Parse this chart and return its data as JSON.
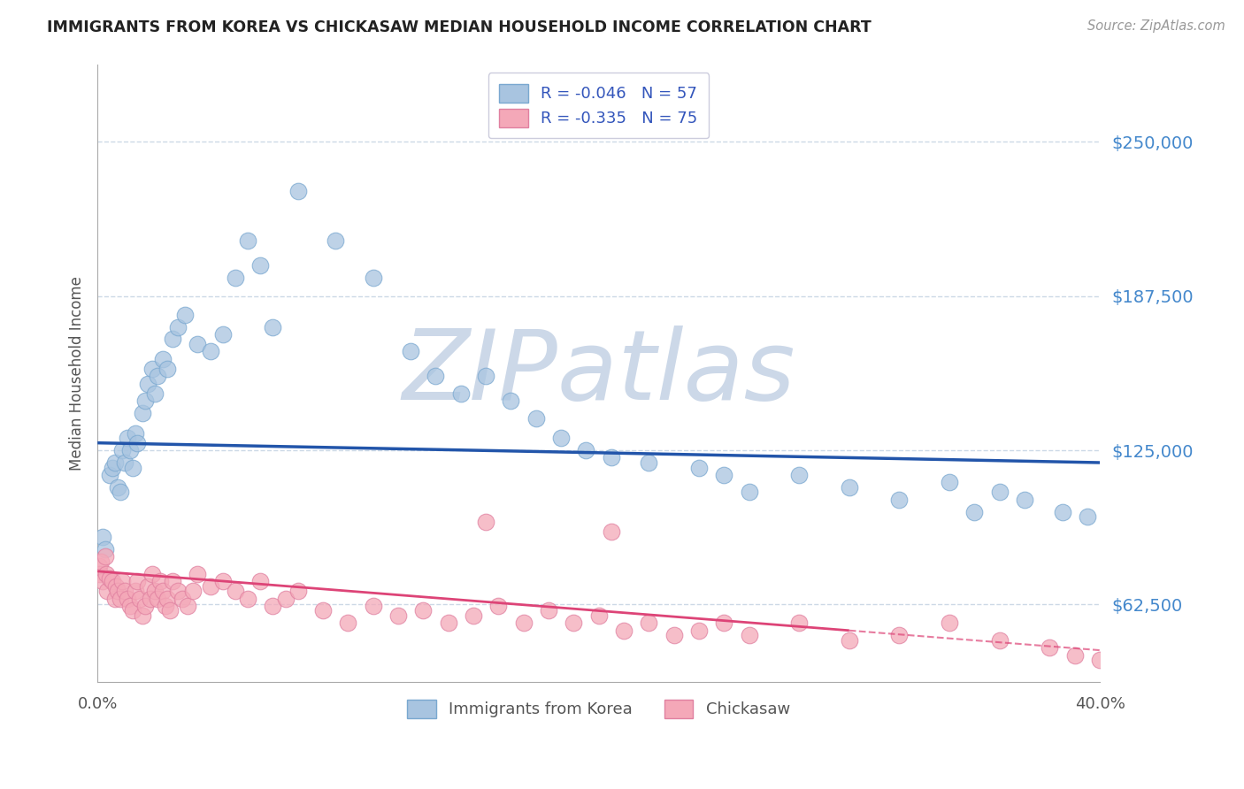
{
  "title": "IMMIGRANTS FROM KOREA VS CHICKASAW MEDIAN HOUSEHOLD INCOME CORRELATION CHART",
  "source": "Source: ZipAtlas.com",
  "ylabel": "Median Household Income",
  "xlim": [
    0.0,
    40.0
  ],
  "ylim": [
    31250,
    281250
  ],
  "yticks": [
    62500,
    125000,
    187500,
    250000
  ],
  "ytick_labels": [
    "$62,500",
    "$125,000",
    "$187,500",
    "$250,000"
  ],
  "blue_R": -0.046,
  "blue_N": 57,
  "pink_R": -0.335,
  "pink_N": 75,
  "blue_color": "#a8c4e0",
  "blue_edge_color": "#7aa8d0",
  "pink_color": "#f4a8b8",
  "pink_edge_color": "#e080a0",
  "blue_line_color": "#2255aa",
  "pink_line_color": "#dd4477",
  "background_color": "#ffffff",
  "grid_color": "#c0d0e0",
  "watermark_color": "#ccd8e8",
  "legend_label_blue": "Immigrants from Korea",
  "legend_label_pink": "Chickasaw",
  "blue_line_y0": 128000,
  "blue_line_y1": 120000,
  "pink_line_y0": 76000,
  "pink_line_y1": 44000,
  "pink_solid_x_end": 30.0,
  "blue_scatter_x": [
    0.2,
    0.3,
    0.5,
    0.6,
    0.7,
    0.8,
    0.9,
    1.0,
    1.1,
    1.2,
    1.3,
    1.4,
    1.5,
    1.6,
    1.8,
    1.9,
    2.0,
    2.2,
    2.3,
    2.4,
    2.6,
    2.8,
    3.0,
    3.2,
    3.5,
    4.0,
    4.5,
    5.0,
    5.5,
    6.0,
    6.5,
    7.0,
    8.0,
    9.5,
    11.0,
    12.5,
    13.5,
    14.5,
    15.5,
    16.5,
    17.5,
    18.5,
    19.5,
    20.5,
    22.0,
    24.0,
    25.0,
    26.0,
    28.0,
    30.0,
    32.0,
    35.0,
    37.0,
    38.5,
    39.5,
    34.0,
    36.0
  ],
  "blue_scatter_y": [
    90000,
    85000,
    115000,
    118000,
    120000,
    110000,
    108000,
    125000,
    120000,
    130000,
    125000,
    118000,
    132000,
    128000,
    140000,
    145000,
    152000,
    158000,
    148000,
    155000,
    162000,
    158000,
    170000,
    175000,
    180000,
    168000,
    165000,
    172000,
    195000,
    210000,
    200000,
    175000,
    230000,
    210000,
    195000,
    165000,
    155000,
    148000,
    155000,
    145000,
    138000,
    130000,
    125000,
    122000,
    120000,
    118000,
    115000,
    108000,
    115000,
    110000,
    105000,
    100000,
    105000,
    100000,
    98000,
    112000,
    108000
  ],
  "pink_scatter_x": [
    0.05,
    0.1,
    0.15,
    0.2,
    0.3,
    0.35,
    0.4,
    0.5,
    0.6,
    0.7,
    0.75,
    0.8,
    0.9,
    1.0,
    1.1,
    1.2,
    1.3,
    1.4,
    1.5,
    1.6,
    1.7,
    1.8,
    1.9,
    2.0,
    2.1,
    2.2,
    2.3,
    2.4,
    2.5,
    2.6,
    2.7,
    2.8,
    2.9,
    3.0,
    3.2,
    3.4,
    3.6,
    3.8,
    4.0,
    4.5,
    5.0,
    5.5,
    6.0,
    6.5,
    7.0,
    7.5,
    8.0,
    9.0,
    10.0,
    11.0,
    12.0,
    13.0,
    14.0,
    15.0,
    16.0,
    17.0,
    18.0,
    19.0,
    20.0,
    21.0,
    22.0,
    23.0,
    24.0,
    25.0,
    26.0,
    28.0,
    30.0,
    32.0,
    34.0,
    36.0,
    38.0,
    39.0,
    40.0,
    20.5,
    15.5
  ],
  "pink_scatter_y": [
    78000,
    75000,
    80000,
    72000,
    82000,
    75000,
    68000,
    73000,
    72000,
    65000,
    70000,
    68000,
    65000,
    72000,
    68000,
    65000,
    62000,
    60000,
    68000,
    72000,
    65000,
    58000,
    62000,
    70000,
    65000,
    75000,
    68000,
    65000,
    72000,
    68000,
    62000,
    65000,
    60000,
    72000,
    68000,
    65000,
    62000,
    68000,
    75000,
    70000,
    72000,
    68000,
    65000,
    72000,
    62000,
    65000,
    68000,
    60000,
    55000,
    62000,
    58000,
    60000,
    55000,
    58000,
    62000,
    55000,
    60000,
    55000,
    58000,
    52000,
    55000,
    50000,
    52000,
    55000,
    50000,
    55000,
    48000,
    50000,
    55000,
    48000,
    45000,
    42000,
    40000,
    92000,
    96000
  ]
}
